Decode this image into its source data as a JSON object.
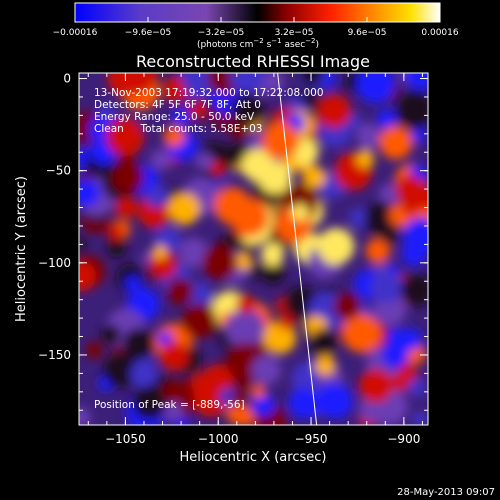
{
  "chart_data": {
    "type": "heatmap",
    "title": "Reconstructed RHESSI Image",
    "xlabel": "Heliocentric X (arcsec)",
    "ylabel": "Heliocentric Y (arcsec)",
    "xlim": [
      -1075,
      -887
    ],
    "ylim": [
      -188,
      3
    ],
    "x_ticks": [
      -1050,
      -1000,
      -950,
      -900
    ],
    "y_ticks": [
      0,
      -50,
      -100,
      -150
    ],
    "x_tick_labels": [
      "−1050",
      "−1000",
      "−950",
      "−900"
    ],
    "y_tick_labels": [
      "0",
      "−50",
      "−100",
      "−150"
    ],
    "colorbar": {
      "min": -0.00016,
      "max": 0.00016,
      "ticks": [
        -0.00016,
        -9.6e-05,
        -3.2e-05,
        3.2e-05,
        9.6e-05,
        0.00016
      ],
      "tick_labels": [
        "−0.00016",
        "−9.6e−05",
        "−3.2e−05",
        "3.2e−05",
        "9.6e−05",
        "0.00016"
      ],
      "unit_text": "(photons cm",
      "unit_exp1": "−2",
      "unit_mid": " s",
      "unit_exp2": "−1",
      "unit_mid2": " asec",
      "unit_exp3": "−2",
      "unit_close": ")",
      "colormap": [
        "#0000ff",
        "#5a3cc8",
        "#7a46b0",
        "#000000",
        "#8b0000",
        "#ff2000",
        "#ff8c00",
        "#ffe000",
        "#ffffff"
      ]
    },
    "limb_line": [
      [
        -968,
        3
      ],
      [
        -947,
        -188
      ]
    ],
    "grid": false,
    "peak": {
      "x": -889,
      "y": -56
    }
  },
  "overlay": {
    "line1": "13-Nov-2003 17:19:32.000 to 17:22:08.000",
    "line2": "Detectors: 4F 5F 6F 7F 8F, Att 0",
    "line3": "Energy Range: 25.0 - 50.0 keV",
    "line4": "Clean     Total counts: 5.58E+03",
    "peak_label": "Position of Peak = [-889,-56]"
  },
  "footer_date": "28-May-2013 09:07"
}
